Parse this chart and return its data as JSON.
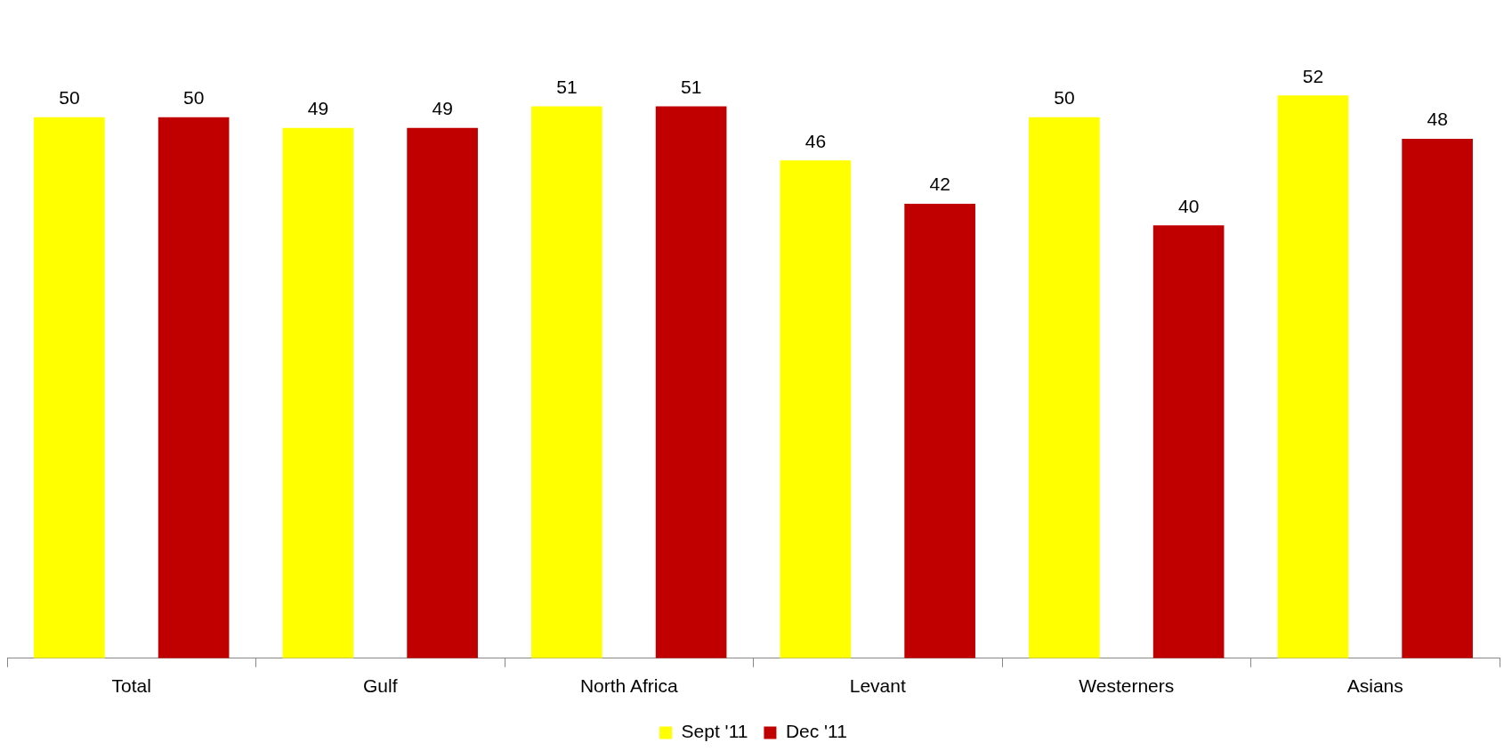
{
  "chart_data": {
    "type": "bar",
    "categories": [
      "Total",
      "Gulf",
      "North Africa",
      "Levant",
      "Westerners",
      "Asians"
    ],
    "series": [
      {
        "name": "Sept '11",
        "color": "#ffff00",
        "values": [
          50,
          49,
          51,
          46,
          50,
          52
        ]
      },
      {
        "name": "Dec '11",
        "color": "#c00000",
        "values": [
          50,
          49,
          51,
          42,
          40,
          48
        ]
      }
    ],
    "data_labels": true,
    "legend": "bottom",
    "grid": false
  }
}
